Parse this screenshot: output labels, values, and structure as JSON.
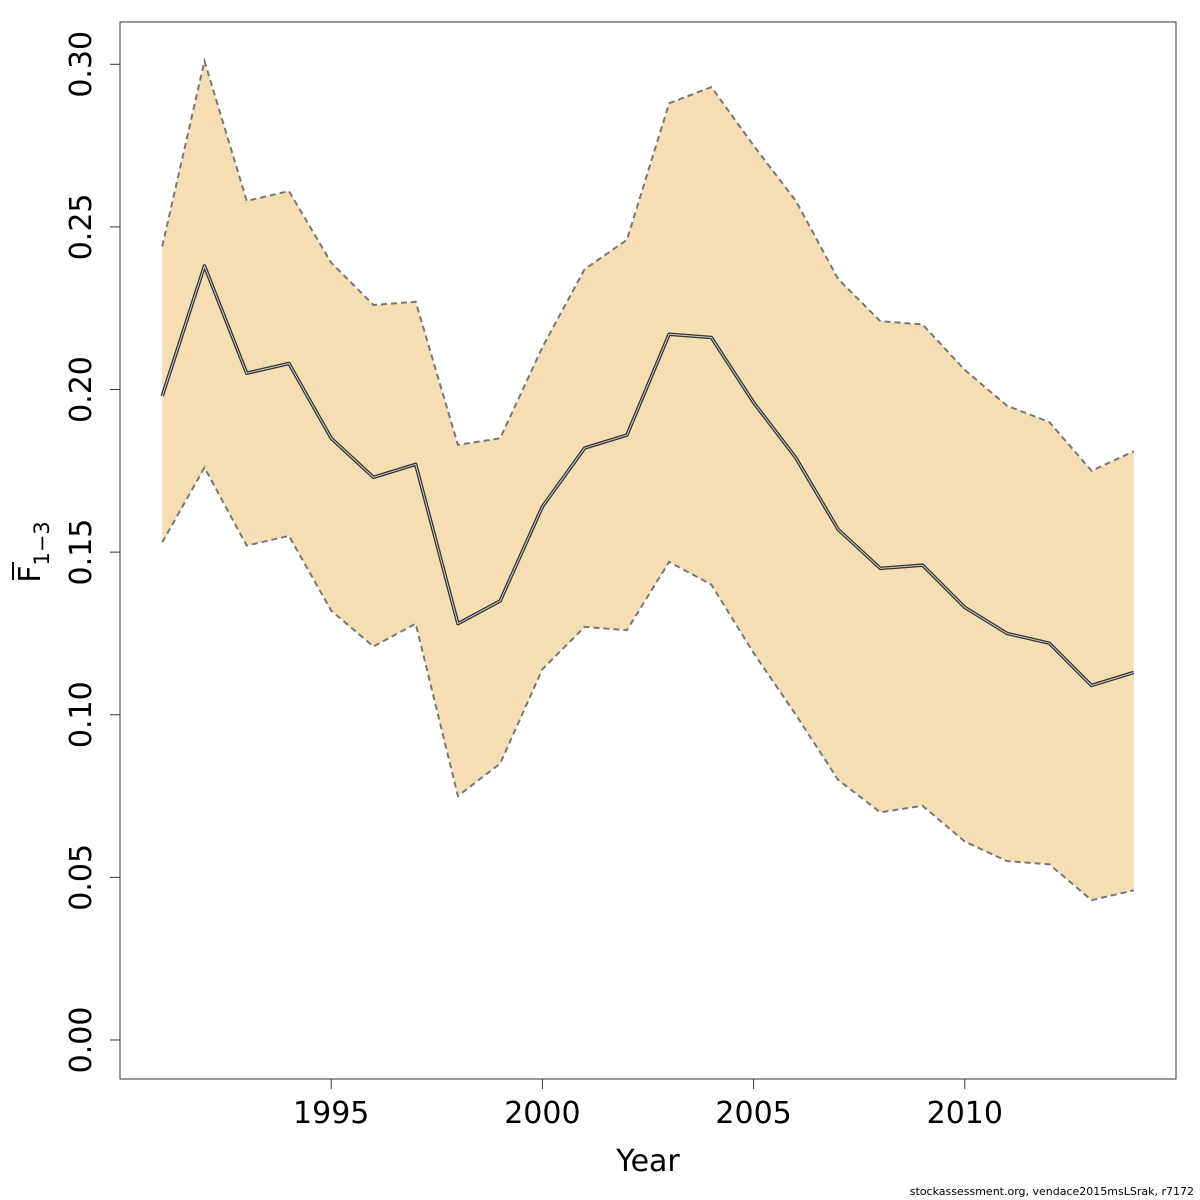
{
  "chart_data": {
    "type": "area",
    "x": [
      1991,
      1992,
      1993,
      1994,
      1995,
      1996,
      1997,
      1998,
      1999,
      2000,
      2001,
      2002,
      2003,
      2004,
      2005,
      2006,
      2007,
      2008,
      2009,
      2010,
      2011,
      2012,
      2013,
      2014
    ],
    "series": [
      {
        "role": "estimate",
        "values": [
          0.198,
          0.238,
          0.205,
          0.208,
          0.185,
          0.173,
          0.177,
          0.128,
          0.135,
          0.164,
          0.182,
          0.186,
          0.217,
          0.216,
          0.196,
          0.179,
          0.157,
          0.145,
          0.146,
          0.133,
          0.125,
          0.122,
          0.109,
          0.113
        ]
      },
      {
        "role": "upper",
        "values": [
          0.244,
          0.301,
          0.258,
          0.261,
          0.239,
          0.226,
          0.227,
          0.183,
          0.185,
          0.213,
          0.237,
          0.246,
          0.288,
          0.293,
          0.275,
          0.258,
          0.234,
          0.221,
          0.22,
          0.206,
          0.195,
          0.19,
          0.175,
          0.181
        ]
      },
      {
        "role": "lower",
        "values": [
          0.153,
          0.176,
          0.152,
          0.155,
          0.132,
          0.121,
          0.128,
          0.075,
          0.085,
          0.114,
          0.127,
          0.126,
          0.147,
          0.14,
          0.119,
          0.1,
          0.08,
          0.07,
          0.072,
          0.061,
          0.055,
          0.054,
          0.043,
          0.046
        ]
      }
    ],
    "xlabel": "Year",
    "ylabel_main": "F",
    "ylabel_sub": "1−3",
    "xlim": [
      1990.0,
      2015.0
    ],
    "ylim": [
      -0.012,
      0.313
    ],
    "xticks": [
      1995,
      2000,
      2005,
      2010
    ],
    "yticks": [
      0.0,
      0.05,
      0.1,
      0.15,
      0.2,
      0.25,
      0.3
    ],
    "ytick_labels": [
      "0.00",
      "0.05",
      "0.10",
      "0.15",
      "0.20",
      "0.25",
      "0.30"
    ],
    "band_color": "#f5deb3",
    "line_color": "#333333",
    "bound_color": "#777777",
    "grid": false
  },
  "footer": "stockassessment.org, vendace2015msLSrak, r7172"
}
